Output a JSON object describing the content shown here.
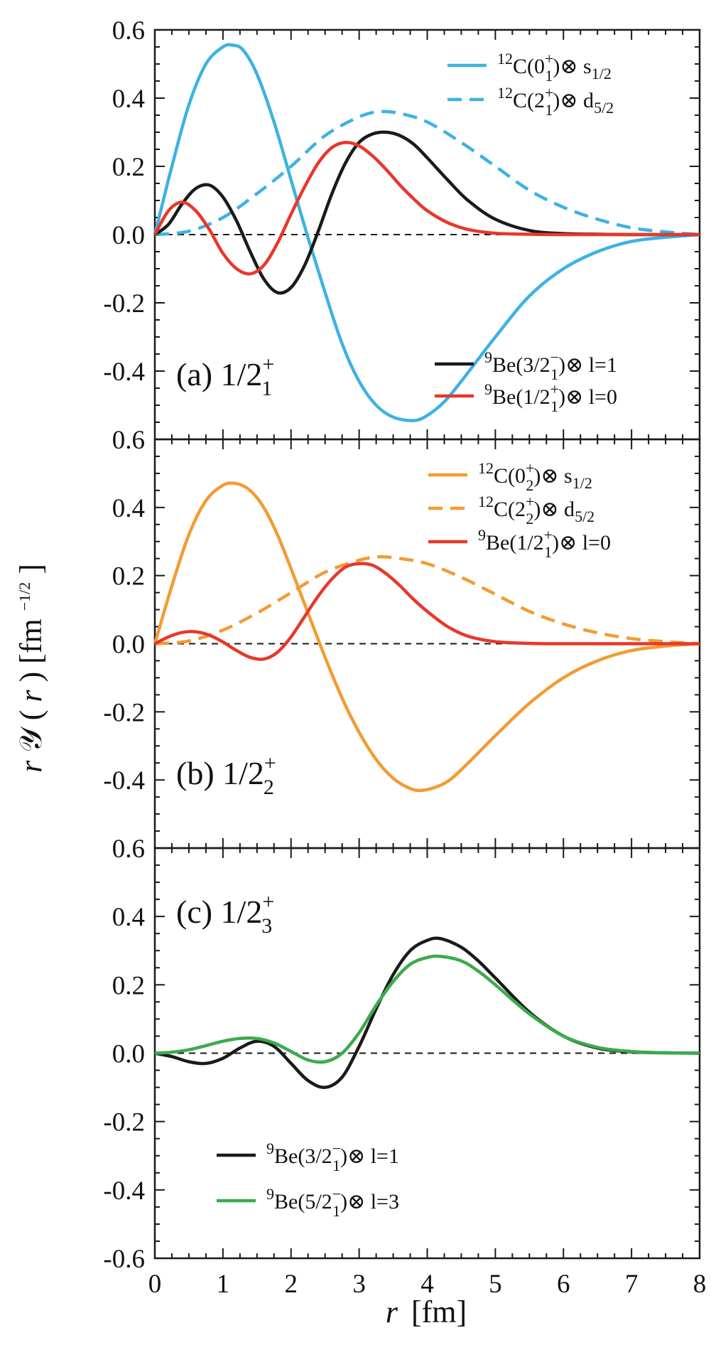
{
  "colors": {
    "black": "#1a1a1a",
    "red": "#e8372a",
    "blue": "#3eb2e3",
    "orange": "#f39b32",
    "green": "#3aab4c"
  },
  "chart_data": [
    {
      "type": "line",
      "panel": "a",
      "xlim": [
        0,
        8
      ],
      "ylim": [
        -0.6,
        0.6
      ],
      "yticks": [
        "0.6",
        "0.4",
        "0.2",
        "0.0",
        "-0.2",
        "-0.4"
      ],
      "label": {
        "prefix": "(a) 1/2",
        "sup": "+",
        "sub": "1"
      },
      "series": [
        {
          "name": "12C(0+1)⊗ s1/2",
          "color": "blue",
          "dash": false,
          "legend": {
            "pre": "12",
            "main": "C(0",
            "sup": "+",
            "sub": "1",
            "post": ")⊗ s",
            "post_sub": "1/2"
          },
          "x": [
            0,
            0.25,
            0.5,
            0.75,
            1.0,
            1.15,
            1.3,
            1.5,
            1.75,
            2.0,
            2.25,
            2.5,
            2.75,
            3.0,
            3.25,
            3.5,
            3.8,
            4.0,
            4.25,
            4.5,
            5.0,
            5.5,
            6.0,
            6.5,
            7.0,
            7.5,
            8.0
          ],
          "y": [
            0,
            0.2,
            0.38,
            0.5,
            0.55,
            0.555,
            0.54,
            0.47,
            0.33,
            0.16,
            -0.01,
            -0.17,
            -0.32,
            -0.43,
            -0.5,
            -0.535,
            -0.545,
            -0.53,
            -0.49,
            -0.43,
            -0.3,
            -0.18,
            -0.1,
            -0.05,
            -0.02,
            -0.008,
            0
          ]
        },
        {
          "name": "12C(2+1)⊗ d5/2",
          "color": "blue",
          "dash": true,
          "legend": {
            "pre": "12",
            "main": "C(2",
            "sup": "+",
            "sub": "1",
            "post": ")⊗ d",
            "post_sub": "5/2"
          },
          "x": [
            0,
            0.5,
            1.0,
            1.5,
            2.0,
            2.5,
            3.0,
            3.3,
            3.6,
            4.0,
            4.5,
            5.0,
            5.5,
            6.0,
            6.5,
            7.0,
            7.5,
            8.0
          ],
          "y": [
            0,
            0.01,
            0.05,
            0.12,
            0.2,
            0.29,
            0.345,
            0.36,
            0.355,
            0.33,
            0.27,
            0.2,
            0.13,
            0.08,
            0.045,
            0.02,
            0.008,
            0
          ]
        },
        {
          "name": "9Be(3/2-1)⊗ l=1",
          "color": "black",
          "dash": false,
          "legend": {
            "pre": "9",
            "main": "Be(3/2",
            "sup": "−",
            "sub": "1",
            "post": ")⊗ l=1",
            "post_sub": ""
          },
          "x": [
            0,
            0.2,
            0.4,
            0.6,
            0.8,
            1.0,
            1.2,
            1.4,
            1.6,
            1.8,
            2.0,
            2.2,
            2.4,
            2.6,
            2.8,
            3.0,
            3.2,
            3.4,
            3.6,
            3.8,
            4.0,
            4.3,
            4.6,
            5.0,
            5.5,
            6.0,
            6.5,
            7.0,
            8.0
          ],
          "y": [
            0,
            0.03,
            0.09,
            0.135,
            0.145,
            0.11,
            0.04,
            -0.05,
            -0.13,
            -0.17,
            -0.155,
            -0.09,
            0.01,
            0.12,
            0.21,
            0.27,
            0.295,
            0.3,
            0.29,
            0.265,
            0.225,
            0.16,
            0.1,
            0.045,
            0.012,
            0.003,
            0.001,
            0,
            0
          ]
        },
        {
          "name": "9Be(1/2+1)⊗ l=0",
          "color": "red",
          "dash": false,
          "legend": {
            "pre": "9",
            "main": "Be(1/2",
            "sup": "+",
            "sub": "1",
            "post": ")⊗ l=0",
            "post_sub": ""
          },
          "x": [
            0,
            0.2,
            0.4,
            0.6,
            0.8,
            1.0,
            1.2,
            1.4,
            1.6,
            1.8,
            2.0,
            2.2,
            2.4,
            2.6,
            2.8,
            3.0,
            3.2,
            3.4,
            3.6,
            3.8,
            4.0,
            4.3,
            4.6,
            5.0,
            5.5,
            6.0,
            7.0,
            8.0
          ],
          "y": [
            0,
            0.07,
            0.095,
            0.07,
            0.015,
            -0.055,
            -0.1,
            -0.115,
            -0.09,
            -0.025,
            0.06,
            0.14,
            0.21,
            0.255,
            0.27,
            0.26,
            0.23,
            0.19,
            0.145,
            0.105,
            0.07,
            0.035,
            0.015,
            0.004,
            0.001,
            0,
            0,
            0
          ]
        }
      ],
      "legend_groups": [
        {
          "position": "top-right",
          "series": [
            0,
            1
          ]
        },
        {
          "position": "bottom-right",
          "series": [
            2,
            3
          ]
        }
      ]
    },
    {
      "type": "line",
      "panel": "b",
      "xlim": [
        0,
        8
      ],
      "ylim": [
        -0.6,
        0.6
      ],
      "yticks": [
        "0.6",
        "0.4",
        "0.2",
        "0.0",
        "-0.2",
        "-0.4"
      ],
      "label": {
        "prefix": "(b) 1/2",
        "sup": "+",
        "sub": "2"
      },
      "series": [
        {
          "name": "12C(0+2)⊗ s1/2",
          "color": "orange",
          "dash": false,
          "legend": {
            "pre": "12",
            "main": "C(0",
            "sup": "+",
            "sub": "2",
            "post": ")⊗ s",
            "post_sub": "1/2"
          },
          "x": [
            0,
            0.25,
            0.5,
            0.75,
            1.0,
            1.2,
            1.4,
            1.6,
            1.8,
            2.0,
            2.25,
            2.5,
            2.75,
            3.0,
            3.25,
            3.5,
            3.75,
            3.95,
            4.25,
            4.5,
            5.0,
            5.5,
            6.0,
            6.5,
            7.0,
            7.5,
            8.0
          ],
          "y": [
            0,
            0.17,
            0.32,
            0.42,
            0.465,
            0.47,
            0.45,
            0.4,
            0.32,
            0.22,
            0.09,
            -0.04,
            -0.16,
            -0.26,
            -0.34,
            -0.395,
            -0.425,
            -0.43,
            -0.41,
            -0.37,
            -0.27,
            -0.175,
            -0.1,
            -0.05,
            -0.02,
            -0.007,
            0
          ]
        },
        {
          "name": "12C(2+2)⊗ d5/2",
          "color": "orange",
          "dash": true,
          "legend": {
            "pre": "12",
            "main": "C(2",
            "sup": "+",
            "sub": "2",
            "post": ")⊗ d",
            "post_sub": "5/2"
          },
          "x": [
            0,
            0.5,
            1.0,
            1.5,
            2.0,
            2.5,
            3.0,
            3.3,
            3.6,
            4.0,
            4.5,
            5.0,
            5.5,
            6.0,
            6.5,
            7.0,
            7.5,
            8.0
          ],
          "y": [
            0,
            0.008,
            0.04,
            0.09,
            0.15,
            0.21,
            0.245,
            0.255,
            0.25,
            0.235,
            0.195,
            0.145,
            0.095,
            0.058,
            0.032,
            0.015,
            0.006,
            0
          ]
        },
        {
          "name": "9Be(1/2+1)⊗ l=0",
          "color": "red",
          "dash": false,
          "legend": {
            "pre": "9",
            "main": "Be(1/2",
            "sup": "+",
            "sub": "1",
            "post": ")⊗ l=0",
            "post_sub": ""
          },
          "x": [
            0,
            0.2,
            0.4,
            0.6,
            0.8,
            1.0,
            1.2,
            1.4,
            1.6,
            1.8,
            2.0,
            2.2,
            2.4,
            2.6,
            2.8,
            3.0,
            3.2,
            3.4,
            3.6,
            3.8,
            4.0,
            4.3,
            4.6,
            5.0,
            5.5,
            6.0,
            7.0,
            8.0
          ],
          "y": [
            0,
            0.02,
            0.033,
            0.035,
            0.025,
            0.005,
            -0.02,
            -0.04,
            -0.045,
            -0.025,
            0.02,
            0.08,
            0.14,
            0.19,
            0.225,
            0.235,
            0.23,
            0.205,
            0.17,
            0.13,
            0.095,
            0.05,
            0.022,
            0.006,
            0.001,
            0,
            0,
            0
          ]
        }
      ],
      "legend_groups": [
        {
          "position": "top-right",
          "series": [
            0,
            1,
            2
          ]
        }
      ]
    },
    {
      "type": "line",
      "panel": "c",
      "xlim": [
        0,
        8
      ],
      "ylim": [
        -0.6,
        0.6
      ],
      "yticks": [
        "0.6",
        "0.4",
        "0.2",
        "0.0",
        "-0.2",
        "-0.4",
        "-0.6"
      ],
      "label": {
        "prefix": "(c) 1/2",
        "sup": "+",
        "sub": "3"
      },
      "series": [
        {
          "name": "9Be(3/2-1)⊗ l=1",
          "color": "black",
          "dash": false,
          "legend": {
            "pre": "9",
            "main": "Be(3/2",
            "sup": "−",
            "sub": "1",
            "post": ")⊗ l=1",
            "post_sub": ""
          },
          "x": [
            0,
            0.25,
            0.5,
            0.75,
            1.0,
            1.25,
            1.5,
            1.75,
            2.0,
            2.25,
            2.5,
            2.75,
            3.0,
            3.25,
            3.5,
            3.75,
            4.0,
            4.2,
            4.5,
            4.75,
            5.0,
            5.5,
            6.0,
            6.5,
            7.0,
            7.5,
            8.0
          ],
          "y": [
            0,
            -0.01,
            -0.025,
            -0.03,
            -0.015,
            0.015,
            0.035,
            0.02,
            -0.03,
            -0.08,
            -0.1,
            -0.07,
            0.02,
            0.13,
            0.23,
            0.3,
            0.33,
            0.335,
            0.31,
            0.27,
            0.22,
            0.12,
            0.05,
            0.015,
            0.004,
            0.001,
            0
          ]
        },
        {
          "name": "9Be(5/2-1)⊗ l=3",
          "color": "green",
          "dash": false,
          "legend": {
            "pre": "9",
            "main": "Be(5/2",
            "sup": "−",
            "sub": "1",
            "post": ")⊗ l=3",
            "post_sub": ""
          },
          "x": [
            0,
            0.25,
            0.5,
            0.75,
            1.0,
            1.25,
            1.5,
            1.75,
            2.0,
            2.25,
            2.5,
            2.75,
            3.0,
            3.25,
            3.5,
            3.75,
            4.0,
            4.2,
            4.5,
            4.75,
            5.0,
            5.5,
            6.0,
            6.5,
            7.0,
            7.5,
            8.0
          ],
          "y": [
            0,
            0.003,
            0.01,
            0.022,
            0.035,
            0.043,
            0.043,
            0.03,
            0.005,
            -0.02,
            -0.025,
            0.0,
            0.06,
            0.14,
            0.21,
            0.26,
            0.28,
            0.283,
            0.27,
            0.24,
            0.2,
            0.115,
            0.05,
            0.017,
            0.005,
            0.001,
            0
          ]
        }
      ],
      "legend_groups": [
        {
          "position": "bottom-left",
          "series": [
            0,
            1
          ]
        }
      ]
    }
  ],
  "shared": {
    "xticks": [
      "0",
      "1",
      "2",
      "3",
      "4",
      "5",
      "6",
      "7",
      "8"
    ],
    "xlabel": {
      "italic": "r",
      "rest": "[fm]"
    },
    "ylabel": {
      "italic": "r",
      "script": "𝒴",
      "mid": "(",
      "italic2": "r",
      "rest": ") [fm",
      "sup": "−1/2",
      "end": "]"
    }
  }
}
